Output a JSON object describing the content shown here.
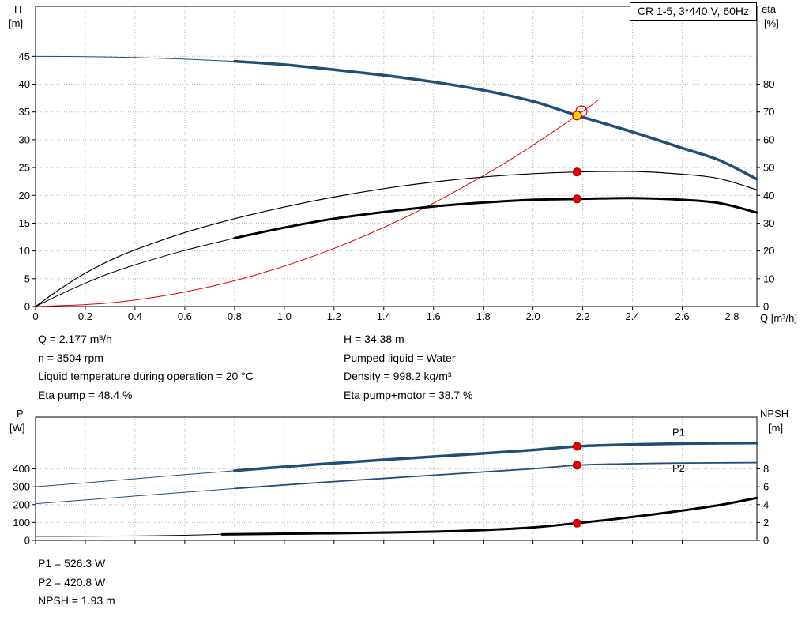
{
  "title_box": {
    "label": "CR 1-5, 3*440 V, 60Hz"
  },
  "info": {
    "left": [
      "Q = 2.177 m³/h",
      "n = 3504 rpm",
      "Liquid temperature during operation = 20 °C",
      "Eta pump = 48.4 %"
    ],
    "right": [
      "H = 34.38 m",
      "Pumped liquid = Water",
      "Density = 998.2 kg/m³",
      "Eta pump+motor = 38.7 %"
    ]
  },
  "results": [
    "P1 = 526.3 W",
    "P2 = 420.8 W",
    "NPSH = 1.93 m"
  ],
  "chart_data": [
    {
      "type": "line",
      "id": "qh-eta-chart",
      "title": "CR 1-5, 3*440 V, 60Hz",
      "x": {
        "label": "Q [m³/h]",
        "min": 0,
        "max": 2.9,
        "ticks": [
          "0",
          "0.2",
          "0.4",
          "0.6",
          "0.8",
          "1.0",
          "1.2",
          "1.4",
          "1.6",
          "1.8",
          "2.0",
          "2.2",
          "2.4",
          "2.6",
          "2.8"
        ],
        "show_tick_labels": true
      },
      "left": {
        "label": "H",
        "unit": "[m]",
        "min": 0,
        "max": 54,
        "ticks": [
          "0",
          "5",
          "10",
          "15",
          "20",
          "25",
          "30",
          "35",
          "40",
          "45"
        ]
      },
      "right": {
        "label": "eta",
        "unit": "[%]",
        "min": 0,
        "max": 108,
        "ticks": [
          "0",
          "10",
          "20",
          "30",
          "40",
          "50",
          "60",
          "70",
          "80"
        ]
      },
      "series": [
        {
          "name": "qh-curve-lead",
          "axis": "left",
          "color": "#1f4e79",
          "width": 1,
          "points": [
            [
              0,
              45
            ],
            [
              0.2,
              44.95
            ],
            [
              0.4,
              44.8
            ],
            [
              0.6,
              44.5
            ],
            [
              0.8,
              44.1
            ]
          ]
        },
        {
          "name": "qh-curve",
          "axis": "left",
          "color": "#1f4e79",
          "width": 3.5,
          "points": [
            [
              0.8,
              44.1
            ],
            [
              1.0,
              43.5
            ],
            [
              1.2,
              42.6
            ],
            [
              1.4,
              41.6
            ],
            [
              1.6,
              40.4
            ],
            [
              1.8,
              38.9
            ],
            [
              2.0,
              36.9
            ],
            [
              2.177,
              34.38
            ],
            [
              2.4,
              31.4
            ],
            [
              2.6,
              28.5
            ],
            [
              2.75,
              26.3
            ],
            [
              2.9,
              22.9
            ]
          ]
        },
        {
          "name": "system-curve",
          "axis": "left",
          "color": "#e60000",
          "width": 1,
          "points": [
            [
              0,
              0
            ],
            [
              0.3,
              0.65
            ],
            [
              0.6,
              2.61
            ],
            [
              0.9,
              5.88
            ],
            [
              1.2,
              10.45
            ],
            [
              1.5,
              16.33
            ],
            [
              1.8,
              23.51
            ],
            [
              2.0,
              29.02
            ],
            [
              2.177,
              34.38
            ],
            [
              2.26,
              37.05
            ]
          ]
        },
        {
          "name": "eta-pump-curve",
          "axis": "right",
          "color": "#000000",
          "width": 1.2,
          "points": [
            [
              0,
              0
            ],
            [
              0.1,
              6.4
            ],
            [
              0.2,
              12.0
            ],
            [
              0.3,
              16.6
            ],
            [
              0.4,
              20.4
            ],
            [
              0.6,
              26.6
            ],
            [
              0.8,
              31.6
            ],
            [
              1.0,
              35.8
            ],
            [
              1.2,
              39.4
            ],
            [
              1.4,
              42.4
            ],
            [
              1.6,
              44.8
            ],
            [
              1.8,
              46.6
            ],
            [
              2.0,
              47.8
            ],
            [
              2.177,
              48.4
            ],
            [
              2.4,
              48.6
            ],
            [
              2.6,
              47.6
            ],
            [
              2.75,
              46.0
            ],
            [
              2.9,
              42.0
            ]
          ]
        },
        {
          "name": "eta-pump-motor-lead",
          "axis": "right",
          "color": "#000000",
          "width": 1,
          "points": [
            [
              0,
              0
            ],
            [
              0.1,
              4.4
            ],
            [
              0.2,
              8.4
            ],
            [
              0.3,
              12.0
            ],
            [
              0.4,
              15.0
            ],
            [
              0.6,
              20.2
            ],
            [
              0.8,
              24.6
            ]
          ]
        },
        {
          "name": "eta-pump-motor-curve",
          "axis": "right",
          "color": "#000000",
          "width": 3,
          "points": [
            [
              0.8,
              24.6
            ],
            [
              1.0,
              28.4
            ],
            [
              1.2,
              31.6
            ],
            [
              1.4,
              34.0
            ],
            [
              1.6,
              36.0
            ],
            [
              1.8,
              37.4
            ],
            [
              2.0,
              38.4
            ],
            [
              2.177,
              38.7
            ],
            [
              2.4,
              39.0
            ],
            [
              2.6,
              38.4
            ],
            [
              2.75,
              37.2
            ],
            [
              2.9,
              33.8
            ]
          ]
        }
      ],
      "markers": [
        {
          "name": "op-ring",
          "q": 2.195,
          "v": 35.1,
          "axis": "left",
          "r": 7,
          "fill": "none",
          "stroke": "#e60000",
          "sw": 1.2,
          "interactable": false
        },
        {
          "name": "operating-point",
          "q": 2.177,
          "v": 34.38,
          "axis": "left",
          "r": 5.5,
          "fill": "#ffd400",
          "stroke": "#e60000",
          "sw": 1.5,
          "interactable": true
        },
        {
          "name": "eta-pump-point",
          "q": 2.177,
          "v": 48.4,
          "axis": "right",
          "r": 5,
          "fill": "#e60000",
          "stroke": "#b00000",
          "sw": 1,
          "interactable": false
        },
        {
          "name": "eta-pump-motor-point",
          "q": 2.177,
          "v": 38.7,
          "axis": "right",
          "r": 5,
          "fill": "#e60000",
          "stroke": "#b00000",
          "sw": 1,
          "interactable": false
        }
      ],
      "labels": []
    },
    {
      "type": "line",
      "id": "power-npsh-chart",
      "title": "",
      "x": {
        "label": "",
        "min": 0,
        "max": 2.9,
        "ticks": [
          "0",
          "0.2",
          "0.4",
          "0.6",
          "0.8",
          "1.0",
          "1.2",
          "1.4",
          "1.6",
          "1.8",
          "2.0",
          "2.2",
          "2.4",
          "2.6",
          "2.8"
        ],
        "show_tick_labels": false
      },
      "left": {
        "label": "P",
        "unit": "[W]",
        "min": 0,
        "max": 690,
        "ticks": [
          "0",
          "100",
          "200",
          "300",
          "400"
        ]
      },
      "right": {
        "label": "NPSH",
        "unit": "[m]",
        "min": 0,
        "max": 13.8,
        "ticks": [
          "0",
          "2",
          "4",
          "6",
          "8"
        ]
      },
      "series": [
        {
          "name": "p1-curve-lead",
          "axis": "left",
          "color": "#1f4e79",
          "width": 1,
          "points": [
            [
              0,
              300
            ],
            [
              0.2,
              322
            ],
            [
              0.4,
              345
            ],
            [
              0.6,
              368
            ],
            [
              0.8,
              390
            ]
          ]
        },
        {
          "name": "p1-curve",
          "axis": "left",
          "color": "#1f4e79",
          "width": 3.5,
          "points": [
            [
              0.8,
              390
            ],
            [
              1.0,
              412
            ],
            [
              1.2,
              432
            ],
            [
              1.4,
              451
            ],
            [
              1.6,
              469
            ],
            [
              1.8,
              487
            ],
            [
              2.0,
              506
            ],
            [
              2.177,
              526.3
            ],
            [
              2.35,
              535
            ],
            [
              2.55,
              541
            ],
            [
              2.75,
              544
            ],
            [
              2.9,
              545
            ]
          ]
        },
        {
          "name": "p2-curve-lead",
          "axis": "left",
          "color": "#1f4e79",
          "width": 1,
          "points": [
            [
              0,
              205
            ],
            [
              0.2,
              226
            ],
            [
              0.4,
              248
            ],
            [
              0.6,
              269
            ],
            [
              0.8,
              290
            ]
          ]
        },
        {
          "name": "p2-curve",
          "axis": "left",
          "color": "#1f4e79",
          "width": 1.8,
          "points": [
            [
              0.8,
              290
            ],
            [
              1.0,
              310
            ],
            [
              1.2,
              329
            ],
            [
              1.4,
              347
            ],
            [
              1.6,
              365
            ],
            [
              1.8,
              383
            ],
            [
              2.0,
              401
            ],
            [
              2.177,
              420.8
            ],
            [
              2.35,
              428
            ],
            [
              2.55,
              432
            ],
            [
              2.75,
              434
            ],
            [
              2.9,
              435
            ]
          ]
        },
        {
          "name": "npsh-curve-lead",
          "axis": "right",
          "color": "#000000",
          "width": 1,
          "points": [
            [
              0,
              0.45
            ],
            [
              0.2,
              0.46
            ],
            [
              0.4,
              0.5
            ],
            [
              0.6,
              0.58
            ],
            [
              0.75,
              0.68
            ]
          ]
        },
        {
          "name": "npsh-curve",
          "axis": "right",
          "color": "#000000",
          "width": 3,
          "points": [
            [
              0.75,
              0.68
            ],
            [
              1.0,
              0.75
            ],
            [
              1.2,
              0.8
            ],
            [
              1.4,
              0.87
            ],
            [
              1.6,
              0.97
            ],
            [
              1.8,
              1.15
            ],
            [
              2.0,
              1.45
            ],
            [
              2.177,
              1.93
            ],
            [
              2.35,
              2.45
            ],
            [
              2.55,
              3.15
            ],
            [
              2.75,
              3.95
            ],
            [
              2.9,
              4.75
            ]
          ]
        }
      ],
      "markers": [
        {
          "name": "p1-point",
          "q": 2.177,
          "v": 526.3,
          "axis": "left",
          "r": 5,
          "fill": "#e60000",
          "stroke": "#b00000",
          "sw": 1,
          "interactable": false
        },
        {
          "name": "p2-point",
          "q": 2.177,
          "v": 420.8,
          "axis": "left",
          "r": 5,
          "fill": "#e60000",
          "stroke": "#b00000",
          "sw": 1,
          "interactable": false
        },
        {
          "name": "npsh-point",
          "q": 2.177,
          "v": 1.93,
          "axis": "right",
          "r": 5,
          "fill": "#e60000",
          "stroke": "#b00000",
          "sw": 1,
          "interactable": false
        }
      ],
      "labels": [
        {
          "text": "P1",
          "q": 2.56,
          "v": 585,
          "axis": "left",
          "color": "#1f4e79"
        },
        {
          "text": "P2",
          "q": 2.56,
          "v": 385,
          "axis": "left",
          "color": "#1f4e79"
        }
      ]
    }
  ]
}
